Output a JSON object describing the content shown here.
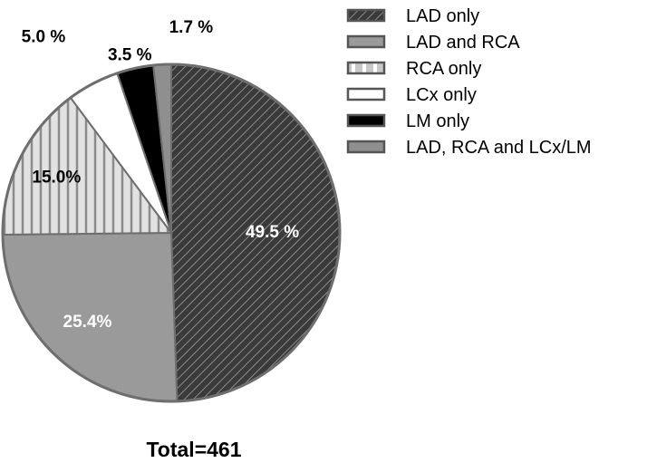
{
  "chart_data": {
    "type": "pie",
    "title": "",
    "total_label": "Total=461",
    "start_angle_deg": 0,
    "direction": "clockwise",
    "slices": [
      {
        "name": "LAD only",
        "value": 49.5,
        "label": "49.5 %",
        "fill": "hatch-diag",
        "label_color": "#ffffff"
      },
      {
        "name": "LAD and RCA",
        "value": 25.4,
        "label": "25.4%",
        "fill": "#9a9a9a",
        "label_color": "#ffffff"
      },
      {
        "name": "RCA only",
        "value": 15.0,
        "label": "15.0%",
        "fill": "hatch-vert",
        "label_color": "#000000"
      },
      {
        "name": "LCx only",
        "value": 5.0,
        "label": "5.0 %",
        "fill": "#ffffff",
        "label_color": "#000000"
      },
      {
        "name": "LM only",
        "value": 3.5,
        "label": "3.5 %",
        "fill": "#000000",
        "label_color": "#000000"
      },
      {
        "name": "LAD, RCA and LCx/LM",
        "value": 1.7,
        "label": "1.7 %",
        "fill": "#8f8f8f",
        "label_color": "#000000"
      }
    ],
    "legend_position": "top-right"
  }
}
